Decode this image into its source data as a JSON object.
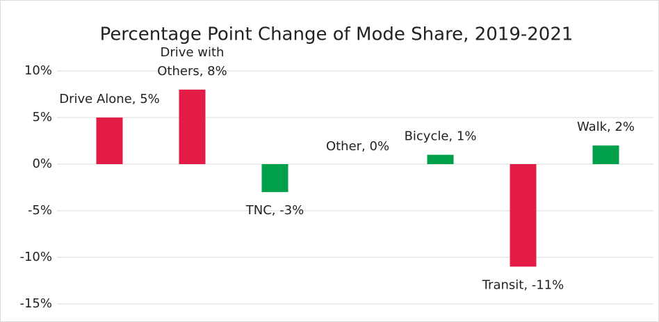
{
  "chart_data": {
    "type": "bar",
    "title": "Percentage Point Change of Mode Share, 2019-2021",
    "values": [
      5,
      8,
      -3,
      0,
      1,
      -11,
      2
    ],
    "value_labels": [
      "Drive Alone, 5%",
      "Drive with Others, 8%",
      "TNC, -3%",
      "Other, 0%",
      "Bicycle, 1%",
      "Transit, -11%",
      "Walk, 2%"
    ],
    "colors": [
      "#e31c46",
      "#e31c46",
      "#00a04b",
      "#00a04b",
      "#00a04b",
      "#e31c46",
      "#00a04b"
    ],
    "ylim": [
      -15,
      10
    ],
    "yticks": [
      {
        "value": -15,
        "label": "-15%"
      },
      {
        "value": -10,
        "label": "-10%"
      },
      {
        "value": -5,
        "label": "-5%"
      },
      {
        "value": 0,
        "label": "0%"
      },
      {
        "value": 5,
        "label": "5%"
      },
      {
        "value": 10,
        "label": "10%"
      }
    ],
    "grid": true
  }
}
